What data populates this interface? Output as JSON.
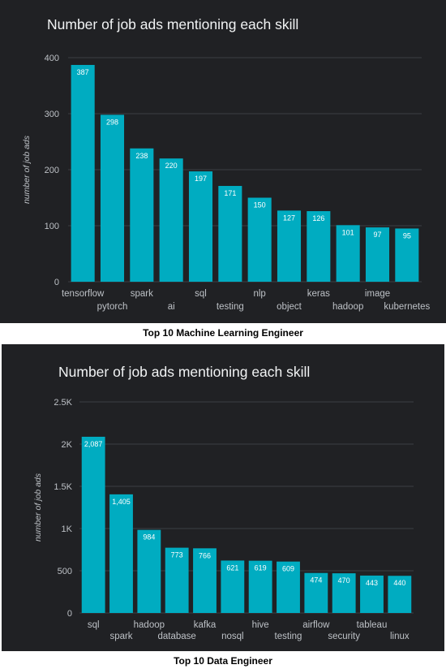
{
  "chart_data": [
    {
      "type": "bar",
      "title": "Number of job ads mentioning each skill",
      "caption": "Top 10 Machine Learning Engineer",
      "xlabel": "",
      "ylabel": "number of job ads",
      "ylim": [
        0,
        400
      ],
      "yticks": [
        0,
        100,
        200,
        300,
        400
      ],
      "ytick_labels": [
        "0",
        "100",
        "200",
        "300",
        "400"
      ],
      "grid": true,
      "categories": [
        "tensorflow",
        "pytorch",
        "spark",
        "ai",
        "sql",
        "testing",
        "nlp",
        "object",
        "keras",
        "hadoop",
        "image",
        "kubernetes"
      ],
      "values": [
        387,
        298,
        238,
        220,
        197,
        171,
        150,
        127,
        126,
        101,
        97,
        95
      ],
      "data_labels": [
        "387",
        "298",
        "238",
        "220",
        "197",
        "171",
        "150",
        "127",
        "126",
        "101",
        "97",
        "95"
      ],
      "bar_color": "#00acc1"
    },
    {
      "type": "bar",
      "title": "Number of job ads mentioning each skill",
      "caption": "Top 10 Data Engineer",
      "xlabel": "",
      "ylabel": "number of job ads",
      "ylim": [
        0,
        2500
      ],
      "yticks": [
        0,
        500,
        1000,
        1500,
        2000,
        2500
      ],
      "ytick_labels": [
        "0",
        "500",
        "1K",
        "1.5K",
        "2K",
        "2.5K"
      ],
      "grid": true,
      "categories": [
        "sql",
        "spark",
        "hadoop",
        "database",
        "kafka",
        "nosql",
        "hive",
        "testing",
        "airflow",
        "security",
        "tableau",
        "linux"
      ],
      "values": [
        2087,
        1405,
        984,
        773,
        766,
        621,
        619,
        609,
        474,
        470,
        443,
        440
      ],
      "data_labels": [
        "2,087",
        "1,405",
        "984",
        "773",
        "766",
        "621",
        "619",
        "609",
        "474",
        "470",
        "443",
        "440"
      ],
      "bar_color": "#00acc1"
    }
  ],
  "colors": {
    "background": "#202124",
    "bar": "#00acc1",
    "grid": "#3c4043",
    "axis_text": "#bdc1c6",
    "title_text": "#f1f3f4",
    "data_label_text": "#ffffff"
  }
}
